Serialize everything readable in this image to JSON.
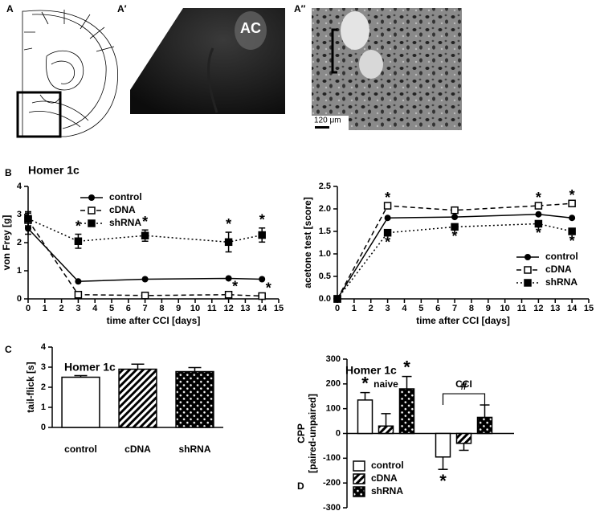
{
  "figure_labels": [
    "A",
    "A′",
    "A″",
    "B",
    "C",
    "D"
  ],
  "images": {
    "a_prime_label": "AC",
    "a_double_prime_scale": "120 μm"
  },
  "chart_data": [
    {
      "type": "line",
      "title": "Homer 1c",
      "xlabel": "time after CCI [days]",
      "ylabel": "von Frey [g]",
      "xlim": [
        0,
        15
      ],
      "xticks": [
        0,
        1,
        2,
        3,
        4,
        5,
        6,
        7,
        8,
        9,
        10,
        11,
        12,
        13,
        14,
        15
      ],
      "ylim": [
        0,
        4
      ],
      "yticks": [
        0,
        1,
        2,
        3,
        4
      ],
      "legend": "upper left",
      "x": [
        0,
        3,
        7,
        12,
        14
      ],
      "series": [
        {
          "name": "control",
          "color": "#000000",
          "line_style": "solid",
          "marker": "circle",
          "values": [
            2.5,
            0.62,
            0.7,
            0.73,
            0.7
          ],
          "errors": [
            0.2,
            null,
            null,
            null,
            null
          ]
        },
        {
          "name": "cDNA",
          "color": "#000000",
          "line_style": "dashed",
          "marker": "open-square",
          "values": [
            2.8,
            0.15,
            0.12,
            0.15,
            0.1
          ],
          "errors": [
            0.25,
            null,
            null,
            null,
            null
          ],
          "annotations": [
            null,
            null,
            null,
            "*",
            "*"
          ],
          "annotation_side": "above"
        },
        {
          "name": "shRNA",
          "color": "#000000",
          "line_style": "dotted",
          "marker": "square",
          "values": [
            2.85,
            2.05,
            2.25,
            2.02,
            2.27
          ],
          "errors": [
            0.25,
            0.25,
            0.2,
            0.35,
            0.25
          ],
          "annotations": [
            null,
            "*",
            "*",
            "*",
            "*"
          ],
          "annotation_side": "above"
        }
      ]
    },
    {
      "type": "line",
      "xlabel": "time after CCI [days]",
      "ylabel": "acetone test [score]",
      "xlim": [
        0,
        15
      ],
      "xticks": [
        0,
        1,
        2,
        3,
        4,
        5,
        6,
        7,
        8,
        9,
        10,
        11,
        12,
        13,
        14,
        15
      ],
      "ylim": [
        0,
        2.5
      ],
      "yticks": [
        {
          "value": 0,
          "label": "0.0"
        },
        0.5,
        {
          "value": 1,
          "label": "1.0"
        },
        1.5,
        {
          "value": 2,
          "label": "2.0"
        },
        2.5
      ],
      "legend": "lower right",
      "x": [
        0,
        3,
        7,
        12,
        14
      ],
      "series": [
        {
          "name": "control",
          "color": "#000000",
          "line_style": "solid",
          "marker": "circle",
          "values": [
            0,
            1.8,
            1.82,
            1.88,
            1.8
          ]
        },
        {
          "name": "cDNA",
          "color": "#000000",
          "line_style": "dashed",
          "marker": "open-square",
          "values": [
            0,
            2.07,
            1.97,
            2.07,
            2.12
          ],
          "annotations": [
            null,
            "*",
            null,
            "*",
            "*"
          ],
          "annotation_side": "above"
        },
        {
          "name": "shRNA",
          "color": "#000000",
          "line_style": "dotted",
          "marker": "square",
          "values": [
            0,
            1.47,
            1.6,
            1.67,
            1.5
          ],
          "annotations": [
            null,
            "*",
            "*",
            "*",
            "*"
          ],
          "annotation_side": "below"
        }
      ]
    },
    {
      "type": "bar",
      "title": "Homer 1c",
      "ylabel": "tail-flick [s]",
      "categories": [
        "control",
        "cDNA",
        "shRNA"
      ],
      "values": [
        2.5,
        2.9,
        2.78
      ],
      "errors": [
        0.08,
        0.25,
        0.2
      ],
      "patterns": [
        "none",
        "hatch",
        "checker"
      ],
      "color": "#000000",
      "ylim": [
        0,
        4
      ],
      "yticks": [
        0,
        1,
        2,
        3,
        4
      ]
    },
    {
      "type": "grouped_bar",
      "title": "Homer 1c",
      "ylabel": [
        "CPP",
        "[paired-unpaired]"
      ],
      "categories": [
        "naive",
        "CCI"
      ],
      "ylim": [
        -300,
        300
      ],
      "yticks": [
        -300,
        -200,
        -100,
        0,
        100,
        200,
        300
      ],
      "legend": "lower left",
      "annotation_side": "outward",
      "bracket_label": "#",
      "series": [
        {
          "name": "control",
          "color": "#000000",
          "pattern": "none",
          "values": [
            135,
            -95
          ],
          "errors": [
            30,
            50
          ],
          "annotations": [
            "*",
            "*"
          ]
        },
        {
          "name": "cDNA",
          "color": "#000000",
          "pattern": "hatch",
          "values": [
            30,
            -40
          ],
          "errors": [
            50,
            28
          ]
        },
        {
          "name": "shRNA",
          "color": "#000000",
          "pattern": "checker",
          "values": [
            180,
            65
          ],
          "errors": [
            50,
            50
          ],
          "annotations": [
            "*",
            null
          ]
        }
      ]
    }
  ]
}
